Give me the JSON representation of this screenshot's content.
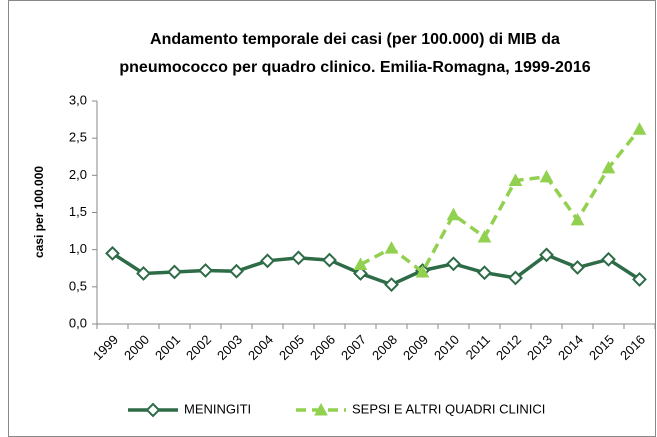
{
  "chart_data": {
    "type": "line",
    "title": [
      "Andamento temporale dei casi (per 100.000) di MIB da",
      "pneumococco per quadro clinico. Emilia-Romagna, 1999-2016"
    ],
    "ylabel": "casi per 100.000",
    "categories": [
      "1999",
      "2000",
      "2001",
      "2002",
      "2003",
      "2004",
      "2005",
      "2006",
      "2007",
      "2008",
      "2009",
      "2010",
      "2011",
      "2012",
      "2013",
      "2014",
      "2015",
      "2016"
    ],
    "series": [
      {
        "name": "MENINGITI",
        "color": "#2e6b47",
        "marker": "diamond",
        "dashed": false,
        "values": [
          0.95,
          0.68,
          0.7,
          0.72,
          0.71,
          0.85,
          0.89,
          0.86,
          0.68,
          0.53,
          0.72,
          0.81,
          0.69,
          0.62,
          0.93,
          0.76,
          0.87,
          0.6
        ]
      },
      {
        "name": "SEPSI E ALTRI QUADRI CLINICI",
        "color": "#92d050",
        "marker": "triangle",
        "dashed": true,
        "values": [
          null,
          null,
          null,
          null,
          null,
          null,
          null,
          null,
          0.8,
          1.02,
          0.7,
          1.47,
          1.17,
          1.93,
          1.98,
          1.4,
          2.1,
          2.62
        ]
      }
    ],
    "ylim": [
      0,
      3
    ],
    "yticks": [
      {
        "value": 0,
        "label": "0,0"
      },
      {
        "value": 0.5,
        "label": "0,5"
      },
      {
        "value": 1,
        "label": "1,0"
      },
      {
        "value": 1.5,
        "label": "1,5"
      },
      {
        "value": 2,
        "label": "2,0"
      },
      {
        "value": 2.5,
        "label": "2,5"
      },
      {
        "value": 3,
        "label": "3,0"
      }
    ],
    "legend": "bottom"
  }
}
